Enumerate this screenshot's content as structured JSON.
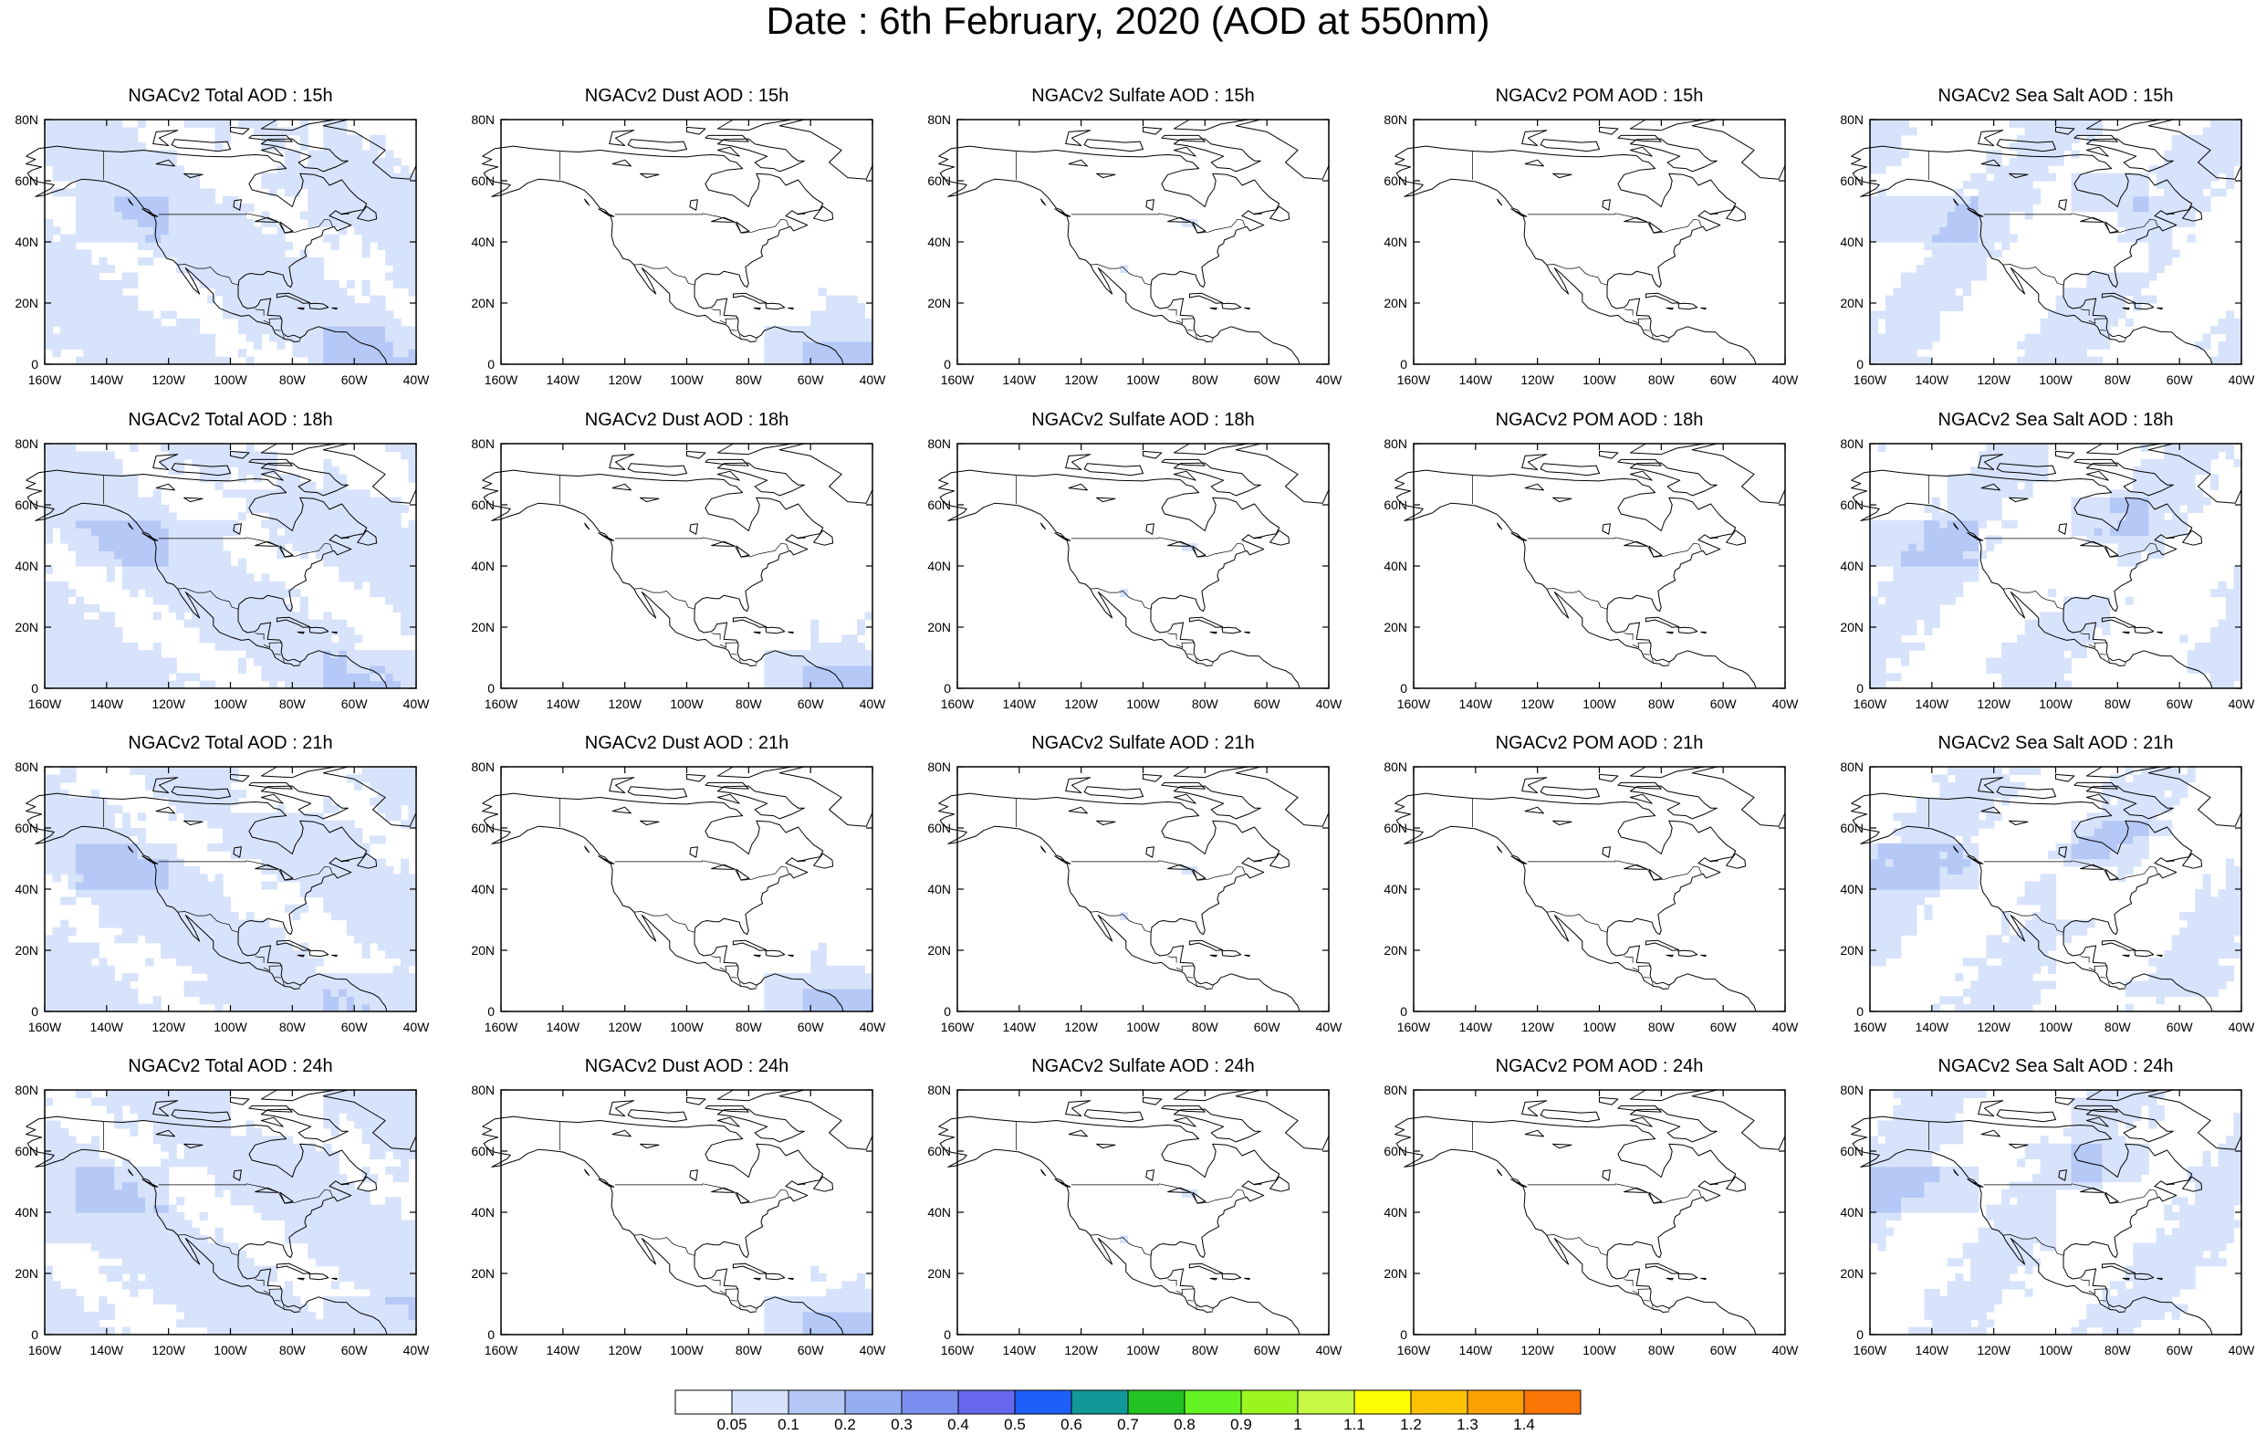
{
  "title": "Date : 6th February, 2020 (AOD at 550nm)",
  "lat_ticks": [
    "80N",
    "60N",
    "40N",
    "20N",
    "0"
  ],
  "lon_ticks": [
    "160W",
    "140W",
    "120W",
    "100W",
    "80W",
    "60W",
    "40W"
  ],
  "panels": [
    {
      "title": "NGACv2 Total AOD : 15h",
      "field": "total"
    },
    {
      "title": "NGACv2 Dust AOD : 15h",
      "field": "dust"
    },
    {
      "title": "NGACv2 Sulfate AOD : 15h",
      "field": "sulfate"
    },
    {
      "title": "NGACv2 POM AOD : 15h",
      "field": "pom"
    },
    {
      "title": "NGACv2 Sea Salt AOD : 15h",
      "field": "seasalt"
    },
    {
      "title": "NGACv2 Total AOD : 18h",
      "field": "total"
    },
    {
      "title": "NGACv2 Dust AOD : 18h",
      "field": "dust"
    },
    {
      "title": "NGACv2 Sulfate AOD : 18h",
      "field": "sulfate"
    },
    {
      "title": "NGACv2 POM AOD : 18h",
      "field": "pom"
    },
    {
      "title": "NGACv2 Sea Salt AOD : 18h",
      "field": "seasalt"
    },
    {
      "title": "NGACv2 Total AOD : 21h",
      "field": "total"
    },
    {
      "title": "NGACv2 Dust AOD : 21h",
      "field": "dust"
    },
    {
      "title": "NGACv2 Sulfate AOD : 21h",
      "field": "sulfate"
    },
    {
      "title": "NGACv2 POM AOD : 21h",
      "field": "pom"
    },
    {
      "title": "NGACv2 Sea Salt AOD : 21h",
      "field": "seasalt"
    },
    {
      "title": "NGACv2 Total AOD : 24h",
      "field": "total"
    },
    {
      "title": "NGACv2 Dust AOD : 24h",
      "field": "dust"
    },
    {
      "title": "NGACv2 Sulfate AOD : 24h",
      "field": "sulfate"
    },
    {
      "title": "NGACv2 POM AOD : 24h",
      "field": "pom"
    },
    {
      "title": "NGACv2 Sea Salt  AOD : 24h",
      "field": "seasalt"
    }
  ],
  "colorbar": {
    "colors": [
      "#ffffff",
      "#d7e3fb",
      "#b5c8f6",
      "#95aef2",
      "#7b8ff0",
      "#6868ee",
      "#1d5ff7",
      "#11999a",
      "#22c322",
      "#63f323",
      "#9af51f",
      "#c7f844",
      "#fdfd04",
      "#fcc104",
      "#fca104",
      "#fb7507",
      "#fb2e1a"
    ],
    "labels": [
      "0.05",
      "0.1",
      "0.2",
      "0.3",
      "0.4",
      "0.5",
      "0.6",
      "0.7",
      "0.8",
      "0.9",
      "1",
      "1.1",
      "1.2",
      "1.3",
      "1.4"
    ]
  }
}
